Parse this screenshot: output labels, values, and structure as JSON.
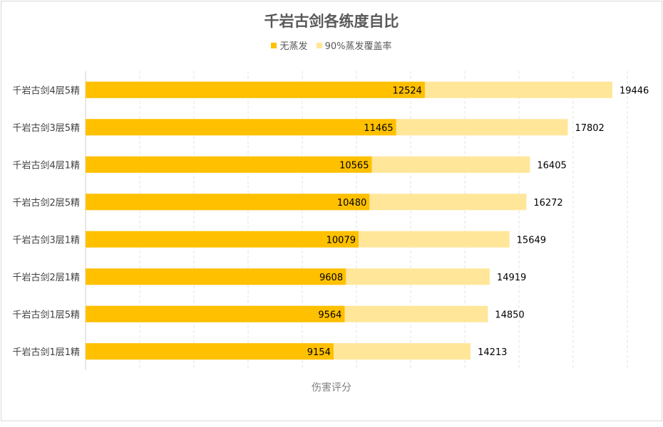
{
  "chart_data": {
    "type": "bar",
    "orientation": "horizontal",
    "stacked": false,
    "title": "千岩古剑各练度自比",
    "xlabel": "伤害评分",
    "ylabel": "",
    "xlim": [
      0,
      20000
    ],
    "x_gridlines": "dashed",
    "legend_position": "top",
    "categories": [
      "千岩古剑4层5精",
      "千岩古剑3层5精",
      "千岩古剑4层1精",
      "千岩古剑2层5精",
      "千岩古剑3层1精",
      "千岩古剑2层1精",
      "千岩古剑1层5精",
      "千岩古剑1层1精"
    ],
    "series": [
      {
        "name": "无蒸发",
        "color": "#ffc000",
        "values": [
          12524,
          11465,
          10565,
          10480,
          10079,
          9608,
          9564,
          9154
        ]
      },
      {
        "name": "90%蒸发覆盖率",
        "color": "#ffe699",
        "values": [
          19446,
          17802,
          16405,
          16272,
          15649,
          14919,
          14850,
          14213
        ]
      }
    ]
  }
}
